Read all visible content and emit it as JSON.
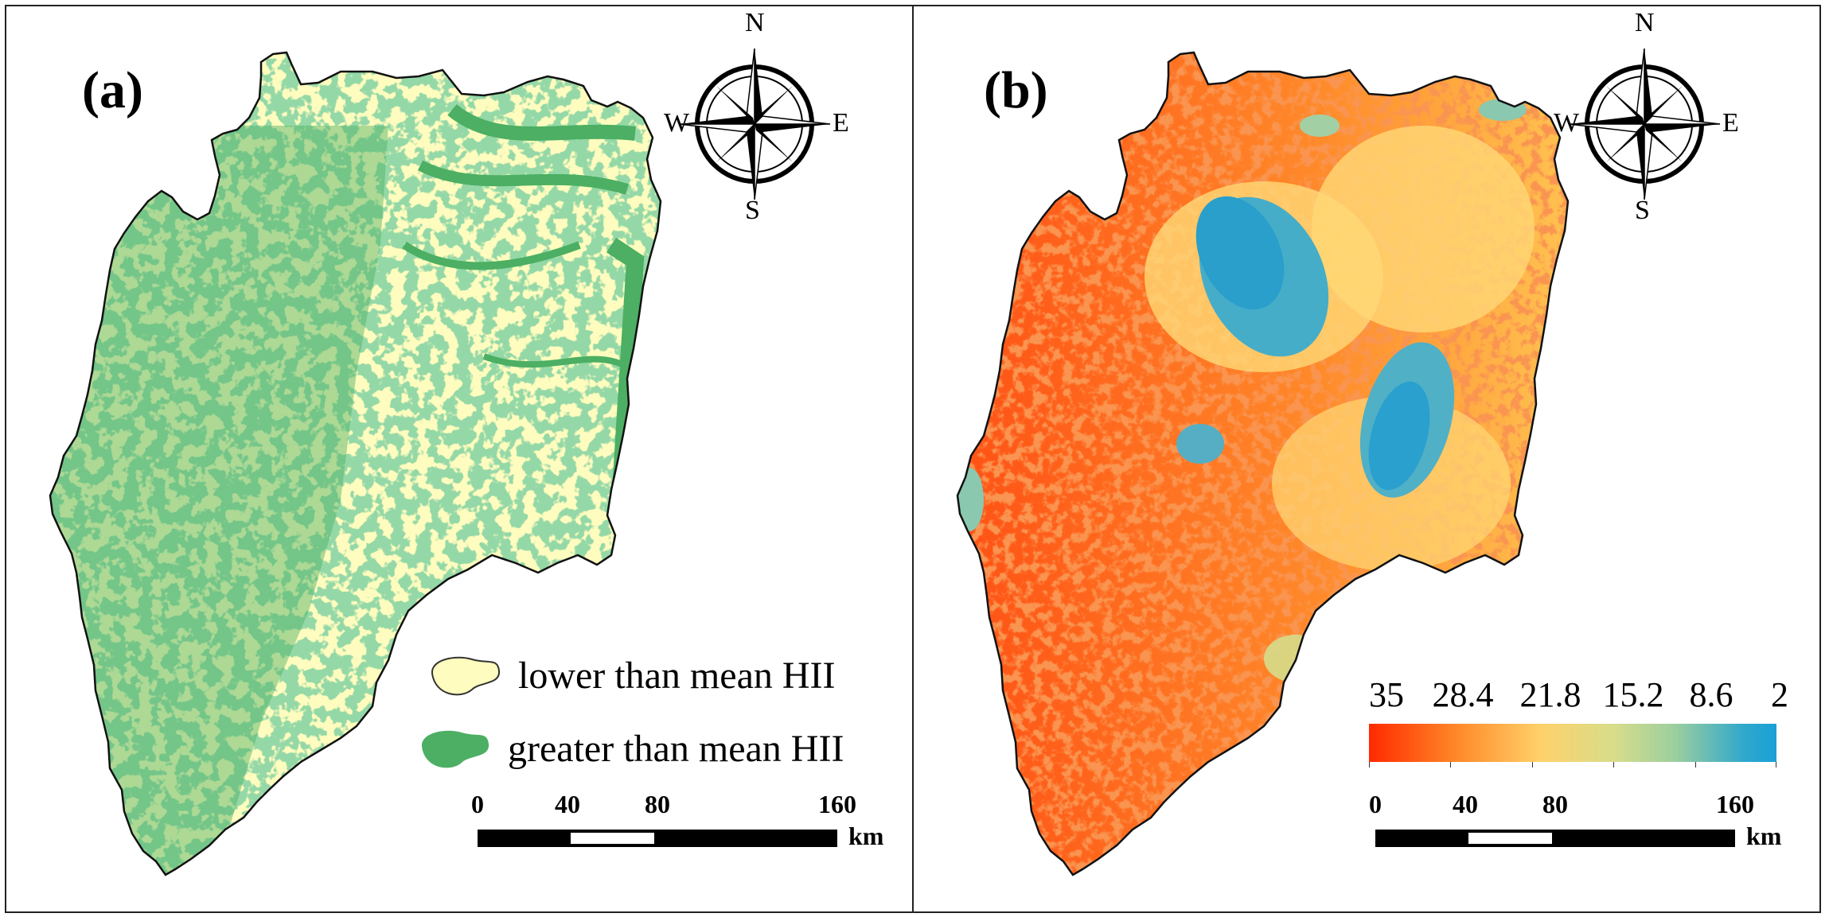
{
  "panels": {
    "a": {
      "label": "(a)",
      "legend": [
        {
          "label": "lower than mean HII",
          "color": "#fefcbe"
        },
        {
          "label": "greater than mean HII",
          "color": "#4caf63"
        }
      ]
    },
    "b": {
      "label": "(b)",
      "colorbar": {
        "labels": [
          "35",
          "28.4",
          "21.8",
          "15.2",
          "8.6",
          "2"
        ],
        "min": 2,
        "max": 35,
        "colors": [
          "#ff2a00",
          "#ff8a2a",
          "#ffd16a",
          "#d8dd8a",
          "#9ccf9e",
          "#1aa0d6"
        ]
      }
    }
  },
  "compass": {
    "n": "N",
    "s": "S",
    "e": "E",
    "w": "W"
  },
  "scalebar": {
    "ticks": [
      "0",
      "40",
      "80",
      "160"
    ],
    "tick_values": [
      0,
      40,
      80,
      160
    ],
    "unit": "km"
  }
}
